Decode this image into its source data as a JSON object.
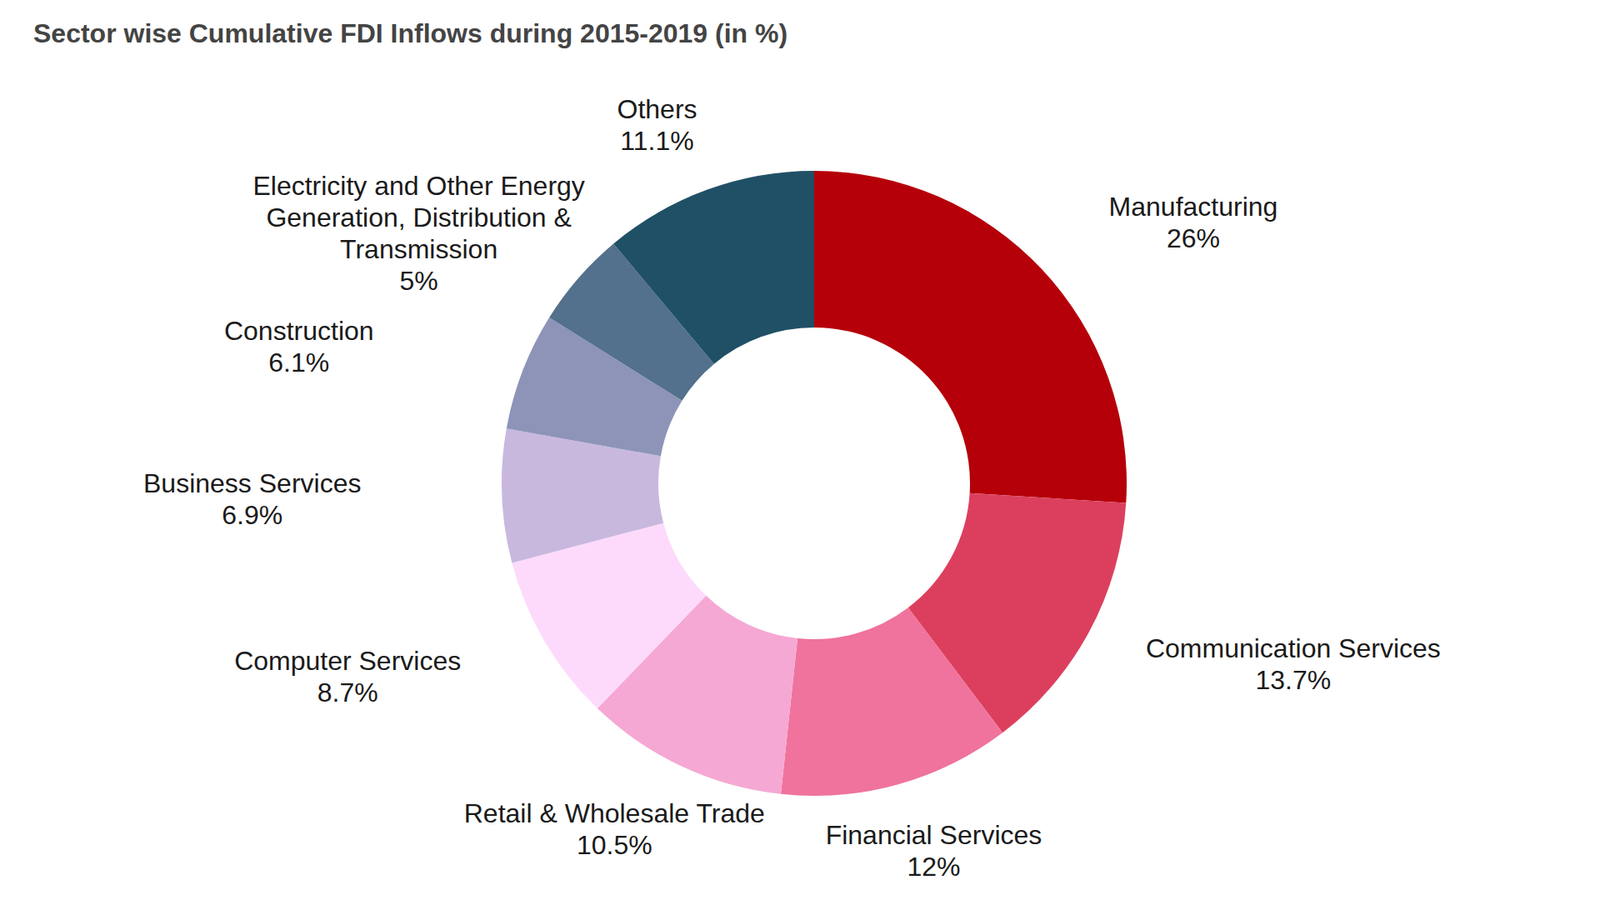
{
  "chart_data": {
    "type": "pie",
    "title": "Sector wise Cumulative FDI Inflows during 2015-2019 (in %)",
    "categories": [
      "Manufacturing",
      "Communication Services",
      "Financial Services",
      "Retail & Wholesale Trade",
      "Computer Services",
      "Business Services",
      "Construction",
      "Electricity and Other Energy Generation, Distribution & Transmission",
      "Others"
    ],
    "values": [
      26,
      13.7,
      12,
      10.5,
      8.7,
      6.9,
      6.1,
      5,
      11.1
    ],
    "value_labels": [
      "26%",
      "13.7%",
      "12%",
      "10.5%",
      "8.7%",
      "6.9%",
      "6.1%",
      "5%",
      "11.1%"
    ],
    "colors": [
      "#b5000a",
      "#dc3f5e",
      "#ef739c",
      "#f5a8d3",
      "#fddafc",
      "#c8b8de",
      "#8d94b8",
      "#53708c",
      "#1f5066"
    ],
    "data_labels": true
  }
}
